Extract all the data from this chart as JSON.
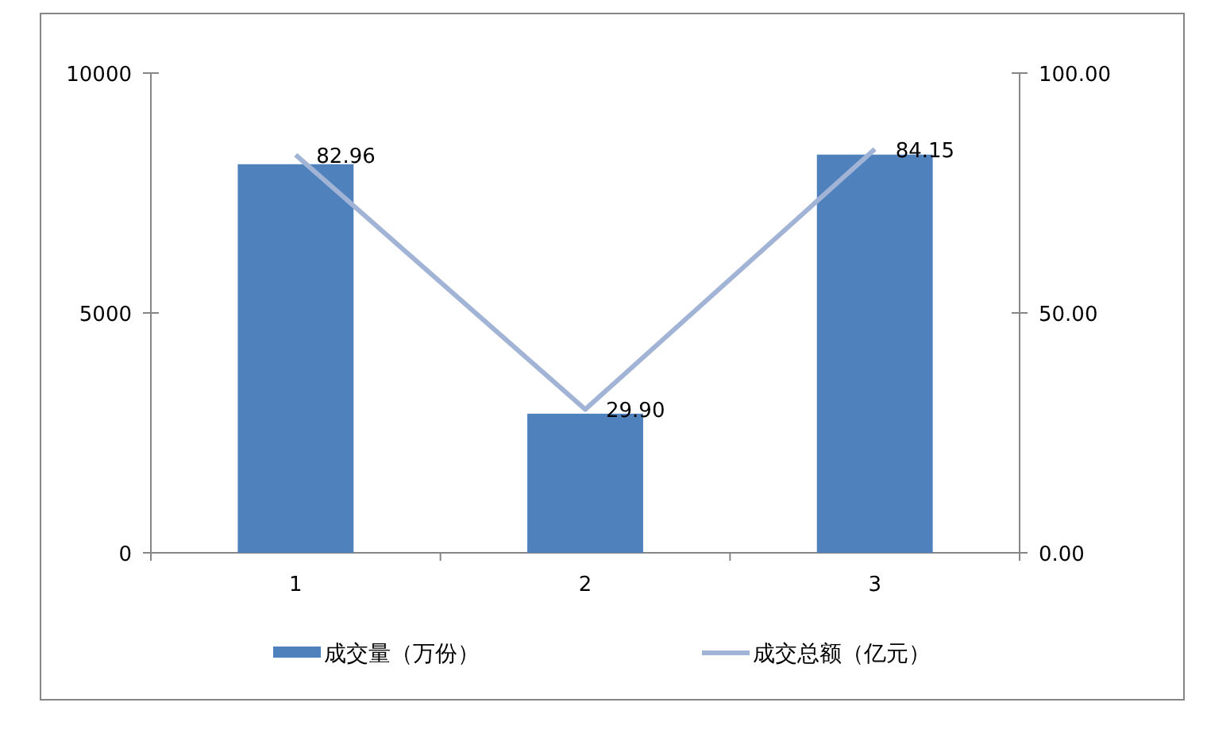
{
  "chart_data": {
    "type": "bar",
    "categories": [
      "1",
      "2",
      "3"
    ],
    "series": [
      {
        "name": "成交量（万份）",
        "color": "#4f81bd",
        "values": [
          8100,
          2900,
          8300
        ]
      },
      {
        "name": "成交总额（亿元）",
        "type": "line",
        "axis": "y2",
        "color": "#a2b4d6",
        "values": [
          82.96,
          29.9,
          84.15
        ],
        "value_labels": [
          "82.96",
          "29.90",
          "84.15"
        ]
      }
    ],
    "ylim": [
      0,
      10000
    ],
    "yticks": [
      0,
      5000,
      10000
    ],
    "y2lim": [
      0,
      100
    ],
    "y2ticks": [
      {
        "value": 0,
        "label": "0.00"
      },
      {
        "value": 50,
        "label": "50.00"
      },
      {
        "value": 100,
        "label": "100.00"
      }
    ],
    "legend": "bottom",
    "grid": false
  }
}
